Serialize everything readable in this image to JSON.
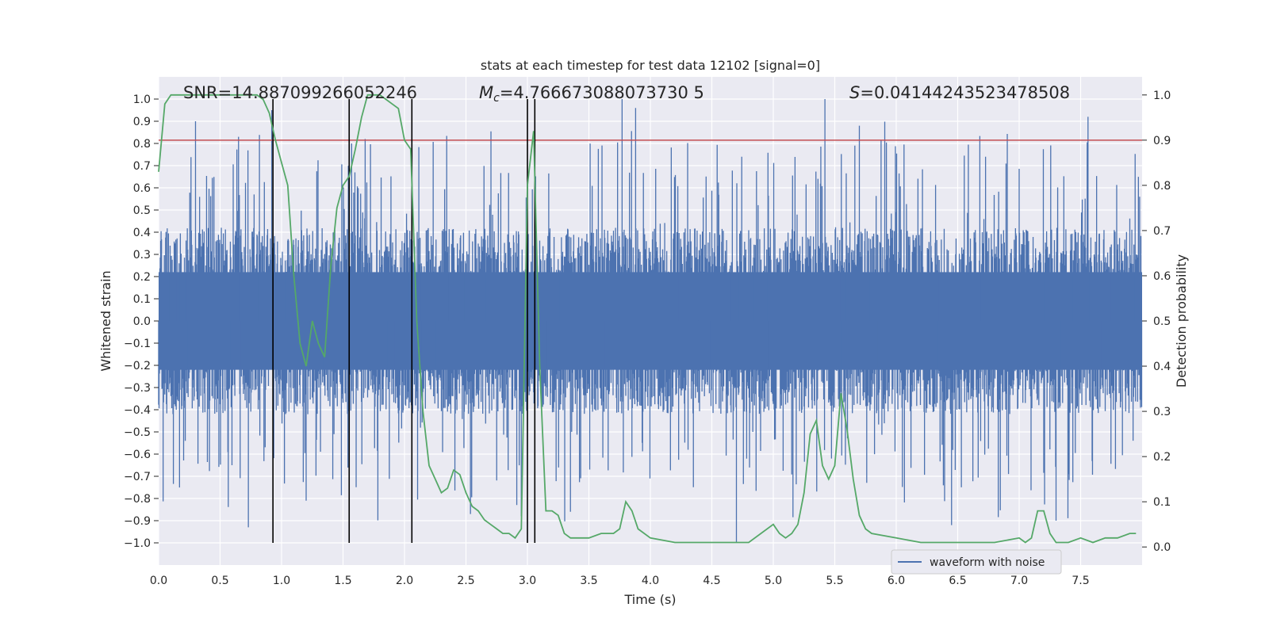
{
  "chart_data": {
    "type": "line",
    "title": "stats at each timestep for test data 12102 [signal=0]",
    "xlabel": "Time (s)",
    "ylabel": "Whitened strain",
    "y2label": "Detection probability",
    "xlim": [
      0.0,
      8.0
    ],
    "ylim": [
      -1.1,
      1.1
    ],
    "y2lim": [
      -0.04,
      1.04
    ],
    "x_ticks": [
      "0.0",
      "0.5",
      "1.0",
      "1.5",
      "2.0",
      "2.5",
      "3.0",
      "3.5",
      "4.0",
      "4.5",
      "5.0",
      "5.5",
      "6.0",
      "6.5",
      "7.0",
      "7.5"
    ],
    "y_ticks": [
      "1.0",
      "0.9",
      "0.8",
      "0.7",
      "0.6",
      "0.5",
      "0.4",
      "0.3",
      "0.2",
      "0.1",
      "0.0",
      "−0.1",
      "−0.2",
      "−0.3",
      "−0.4",
      "−0.5",
      "−0.6",
      "−0.7",
      "−0.8",
      "−0.9",
      "−1.0"
    ],
    "y2_ticks": [
      "1.0",
      "0.9",
      "0.8",
      "0.7",
      "0.6",
      "0.5",
      "0.4",
      "0.3",
      "0.2",
      "0.1",
      "0.0"
    ],
    "annotations": {
      "snr": "SNR=14.887099266052246",
      "mc_symbol": "M",
      "mc_sub": "c",
      "mc_value": "=4.766673088073730 5",
      "s_symbol": "S",
      "s_value": "=0.04144243523478508"
    },
    "threshold": {
      "value": 0.9,
      "axis": "y2",
      "color": "#c44e52"
    },
    "vertical_lines": [
      0.93,
      1.55,
      2.06,
      3.0,
      3.06
    ],
    "vertical_line_range": [
      -1.0,
      1.0
    ],
    "waveform": {
      "name": "waveform with noise",
      "color": "#4c72b0",
      "duration": 8.0,
      "typical_peak": 0.4,
      "spikes": [
        {
          "t": 0.3,
          "v": 0.9
        },
        {
          "t": 0.65,
          "v": 0.83
        },
        {
          "t": 0.73,
          "v": -0.93
        },
        {
          "t": 0.92,
          "v": 0.95
        },
        {
          "t": 1.2,
          "v": -0.81
        },
        {
          "t": 1.57,
          "v": 0.8
        },
        {
          "t": 1.68,
          "v": 0.82
        },
        {
          "t": 3.77,
          "v": 1.0
        },
        {
          "t": 3.88,
          "v": 0.96
        },
        {
          "t": 4.7,
          "v": -1.0
        },
        {
          "t": 5.42,
          "v": 1.0
        },
        {
          "t": 6.45,
          "v": -0.92
        },
        {
          "t": 7.56,
          "v": 0.92
        },
        {
          "t": 2.95,
          "v": -0.88
        },
        {
          "t": 3.35,
          "v": -0.86
        },
        {
          "t": 5.7,
          "v": 0.88
        },
        {
          "t": 7.3,
          "v": -0.9
        }
      ]
    },
    "probability": {
      "name": "detection probability",
      "color": "#55a868",
      "x": [
        0.0,
        0.05,
        0.1,
        0.2,
        0.3,
        0.4,
        0.5,
        0.6,
        0.7,
        0.8,
        0.85,
        0.9,
        0.95,
        1.0,
        1.05,
        1.1,
        1.15,
        1.2,
        1.25,
        1.3,
        1.35,
        1.4,
        1.45,
        1.5,
        1.55,
        1.6,
        1.65,
        1.7,
        1.75,
        1.8,
        1.85,
        1.9,
        1.95,
        2.0,
        2.05,
        2.1,
        2.15,
        2.2,
        2.25,
        2.3,
        2.35,
        2.4,
        2.45,
        2.5,
        2.55,
        2.6,
        2.65,
        2.7,
        2.75,
        2.8,
        2.85,
        2.9,
        2.95,
        3.0,
        3.05,
        3.1,
        3.15,
        3.2,
        3.25,
        3.3,
        3.35,
        3.4,
        3.5,
        3.6,
        3.7,
        3.75,
        3.8,
        3.85,
        3.9,
        4.0,
        4.2,
        4.4,
        4.6,
        4.8,
        5.0,
        5.05,
        5.1,
        5.15,
        5.2,
        5.25,
        5.3,
        5.35,
        5.4,
        5.45,
        5.5,
        5.55,
        5.6,
        5.65,
        5.7,
        5.75,
        5.8,
        6.0,
        6.2,
        6.4,
        6.6,
        6.8,
        7.0,
        7.05,
        7.1,
        7.15,
        7.2,
        7.25,
        7.3,
        7.4,
        7.5,
        7.6,
        7.7,
        7.8,
        7.9,
        7.95
      ],
      "y": [
        0.83,
        0.98,
        1.0,
        1.0,
        1.0,
        1.0,
        1.0,
        1.0,
        1.0,
        1.0,
        0.99,
        0.96,
        0.9,
        0.85,
        0.8,
        0.6,
        0.45,
        0.4,
        0.5,
        0.45,
        0.42,
        0.62,
        0.75,
        0.8,
        0.82,
        0.88,
        0.95,
        1.0,
        1.0,
        1.0,
        0.99,
        0.98,
        0.97,
        0.9,
        0.88,
        0.5,
        0.3,
        0.18,
        0.15,
        0.12,
        0.13,
        0.17,
        0.16,
        0.12,
        0.09,
        0.08,
        0.06,
        0.05,
        0.04,
        0.03,
        0.03,
        0.02,
        0.04,
        0.8,
        0.92,
        0.4,
        0.08,
        0.08,
        0.07,
        0.03,
        0.02,
        0.02,
        0.02,
        0.03,
        0.03,
        0.04,
        0.1,
        0.08,
        0.04,
        0.02,
        0.01,
        0.01,
        0.01,
        0.01,
        0.05,
        0.03,
        0.02,
        0.03,
        0.05,
        0.12,
        0.25,
        0.28,
        0.18,
        0.15,
        0.18,
        0.34,
        0.26,
        0.15,
        0.07,
        0.04,
        0.03,
        0.02,
        0.01,
        0.01,
        0.01,
        0.01,
        0.02,
        0.01,
        0.02,
        0.08,
        0.08,
        0.03,
        0.01,
        0.01,
        0.02,
        0.01,
        0.02,
        0.02,
        0.03,
        0.03
      ]
    },
    "legend": {
      "label": "waveform with noise",
      "position": "lower-right"
    }
  }
}
